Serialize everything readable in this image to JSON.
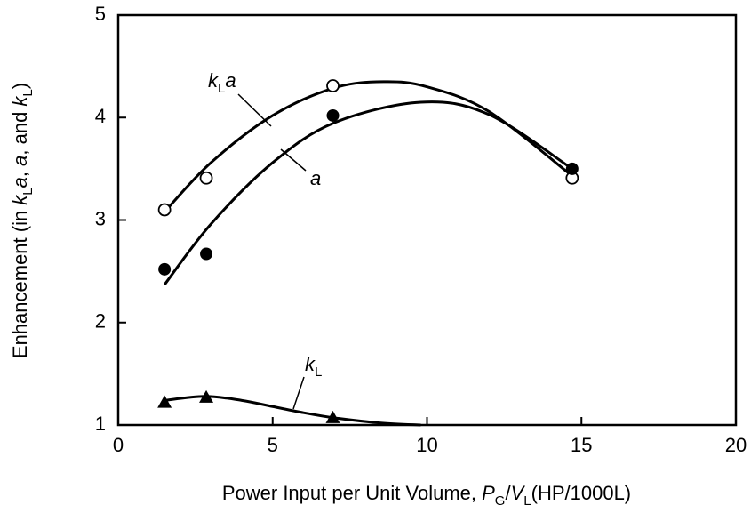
{
  "chart_data": {
    "type": "scatter",
    "xlabel": [
      {
        "text": "Power Input per Unit Volume, "
      },
      {
        "text": "P",
        "italic": true
      },
      {
        "text": "G",
        "sub": true
      },
      {
        "text": "/"
      },
      {
        "text": "V",
        "italic": true
      },
      {
        "text": "L",
        "sub": true
      },
      {
        "text": "(HP/1000L)"
      }
    ],
    "ylabel": [
      {
        "text": "Enhancement (in "
      },
      {
        "text": "k",
        "italic": true
      },
      {
        "text": "L",
        "sub": true
      },
      {
        "text": "a",
        "italic": true
      },
      {
        "text": ", "
      },
      {
        "text": "a",
        "italic": true
      },
      {
        "text": ", and "
      },
      {
        "text": "k",
        "italic": true
      },
      {
        "text": "L",
        "sub": true
      },
      {
        "text": ")"
      }
    ],
    "xlim": [
      0,
      20
    ],
    "ylim": [
      1,
      5
    ],
    "xticks": [
      0,
      5,
      10,
      15,
      20
    ],
    "yticks": [
      1,
      2,
      3,
      4,
      5
    ],
    "series": [
      {
        "marker": "open-circle",
        "color": "#000000",
        "x": [
          1.5,
          2.85,
          6.95,
          14.7
        ],
        "values": [
          3.1,
          3.41,
          4.31,
          3.41
        ]
      },
      {
        "marker": "filled-circle",
        "color": "#000000",
        "x": [
          1.5,
          2.85,
          6.95,
          14.7
        ],
        "values": [
          2.52,
          2.67,
          4.02,
          3.5
        ]
      },
      {
        "marker": "filled-triangle",
        "color": "#000000",
        "x": [
          1.5,
          2.85,
          6.95
        ],
        "values": [
          1.22,
          1.27,
          1.07
        ]
      }
    ],
    "curves": [
      {
        "color": "#000000",
        "x": [
          1.5,
          3,
          5,
          7,
          8.6,
          10,
          12,
          14.7
        ],
        "values": [
          3.08,
          3.56,
          4.02,
          4.29,
          4.35,
          4.3,
          4.06,
          3.43
        ]
      },
      {
        "color": "#000000",
        "x": [
          1.5,
          3,
          5,
          7,
          9.8,
          12,
          14.7
        ],
        "values": [
          2.37,
          2.96,
          3.56,
          3.95,
          4.15,
          4.03,
          3.5
        ]
      },
      {
        "color": "#000000",
        "x": [
          1.5,
          2.8,
          4,
          5,
          6,
          7,
          8.5,
          9.8
        ],
        "values": [
          1.24,
          1.28,
          1.24,
          1.18,
          1.12,
          1.07,
          1.02,
          1.0
        ]
      }
    ],
    "annotations": [
      [
        {
          "text": "k",
          "italic": true
        },
        {
          "text": "L",
          "sub": true
        },
        {
          "text": "a",
          "italic": true
        }
      ],
      [
        {
          "text": "a",
          "italic": true
        }
      ],
      [
        {
          "text": "k",
          "italic": true
        },
        {
          "text": "L",
          "sub": true
        }
      ]
    ]
  }
}
